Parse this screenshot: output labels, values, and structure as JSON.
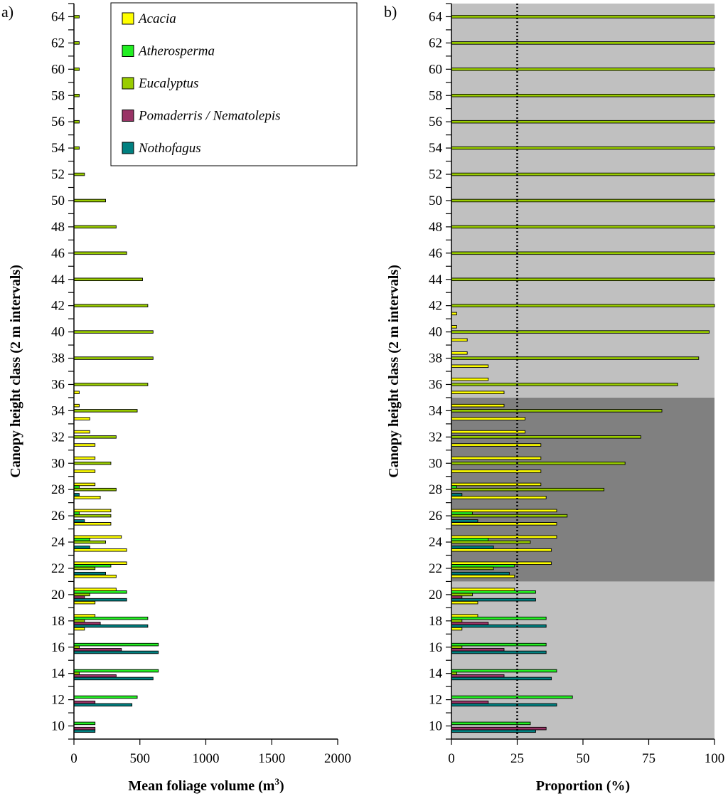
{
  "figure": {
    "panel_a_label": "a)",
    "panel_b_label": "b)"
  },
  "colors": {
    "Acacia": "#ffff00",
    "Atherosperma": "#22ee22",
    "Eucalyptus": "#99cc00",
    "Pomaderris / Nematolepis": "#993366",
    "Nothofagus": "#008080",
    "shade_light": "#c0c0c0",
    "shade_dark": "#808080"
  },
  "legend": {
    "items": [
      {
        "label": "Acacia",
        "color": "#ffff00"
      },
      {
        "label": "Atherosperma",
        "color": "#22ee22"
      },
      {
        "label": "Eucalyptus",
        "color": "#99cc00"
      },
      {
        "label": "Pomaderris / Nematolepis",
        "color": "#993366"
      },
      {
        "label": "Nothofagus",
        "color": "#008080"
      }
    ]
  },
  "chart_data": [
    {
      "type": "bar",
      "orientation": "horizontal",
      "panel": "a)",
      "xlabel_main": "Mean foliage volume (m",
      "xlabel_sup": "3",
      "xlabel_end": ")",
      "ylabel": "Canopy height class (2 m intervals)",
      "xlim": [
        0,
        2000
      ],
      "xticks": [
        "0",
        "500",
        "1000",
        "1500",
        "2000"
      ],
      "yticks": [
        "10",
        "12",
        "14",
        "16",
        "18",
        "20",
        "22",
        "24",
        "26",
        "28",
        "30",
        "32",
        "34",
        "36",
        "38",
        "40",
        "42",
        "44",
        "46",
        "48",
        "50",
        "52",
        "54",
        "56",
        "58",
        "60",
        "62",
        "64"
      ],
      "categories": [
        10,
        11,
        12,
        13,
        14,
        15,
        16,
        17,
        18,
        19,
        20,
        21,
        22,
        23,
        24,
        25,
        26,
        27,
        28,
        29,
        30,
        31,
        32,
        33,
        34,
        35,
        36,
        37,
        38,
        39,
        40,
        41,
        42,
        43,
        44,
        45,
        46,
        47,
        48,
        49,
        50,
        51,
        52,
        53,
        54,
        55,
        56,
        57,
        58,
        59,
        60,
        61,
        62,
        63,
        64
      ],
      "series": [
        {
          "name": "Acacia",
          "values": [
            0,
            0,
            0,
            0,
            0,
            0,
            0,
            80,
            160,
            160,
            320,
            320,
            400,
            400,
            360,
            280,
            280,
            200,
            160,
            160,
            160,
            160,
            120,
            120,
            40,
            40,
            0,
            0,
            0,
            0,
            0,
            0,
            0,
            0,
            0,
            0,
            0,
            0,
            0,
            0,
            0,
            0,
            0,
            0,
            0,
            0,
            0,
            0,
            0,
            0,
            0,
            0,
            0,
            0,
            0
          ]
        },
        {
          "name": "Atherosperma",
          "values": [
            160,
            0,
            480,
            0,
            640,
            0,
            640,
            0,
            560,
            0,
            400,
            0,
            280,
            0,
            120,
            0,
            40,
            0,
            40,
            0,
            0,
            0,
            0,
            0,
            0,
            0,
            0,
            0,
            0,
            0,
            0,
            0,
            0,
            0,
            0,
            0,
            0,
            0,
            0,
            0,
            0,
            0,
            0,
            0,
            0,
            0,
            0,
            0,
            0,
            0,
            0,
            0,
            0,
            0,
            0
          ]
        },
        {
          "name": "Eucalyptus",
          "values": [
            0,
            0,
            0,
            0,
            40,
            0,
            40,
            0,
            80,
            0,
            120,
            0,
            160,
            0,
            240,
            0,
            280,
            0,
            320,
            0,
            280,
            0,
            320,
            0,
            480,
            0,
            560,
            0,
            600,
            0,
            600,
            0,
            560,
            0,
            520,
            0,
            400,
            0,
            320,
            0,
            240,
            0,
            80,
            0,
            40,
            0,
            40,
            0,
            40,
            0,
            40,
            0,
            40,
            0,
            40
          ]
        },
        {
          "name": "Pomaderris / Nematolepis",
          "values": [
            160,
            0,
            160,
            0,
            320,
            0,
            360,
            0,
            200,
            0,
            80,
            0,
            0,
            0,
            0,
            0,
            0,
            0,
            0,
            0,
            0,
            0,
            0,
            0,
            0,
            0,
            0,
            0,
            0,
            0,
            0,
            0,
            0,
            0,
            0,
            0,
            0,
            0,
            0,
            0,
            0,
            0,
            0,
            0,
            0,
            0,
            0,
            0,
            0,
            0,
            0,
            0,
            0,
            0,
            0
          ]
        },
        {
          "name": "Nothofagus",
          "values": [
            160,
            0,
            440,
            0,
            600,
            0,
            640,
            0,
            560,
            0,
            400,
            0,
            240,
            0,
            120,
            0,
            80,
            0,
            40,
            0,
            0,
            0,
            0,
            0,
            0,
            0,
            0,
            0,
            0,
            0,
            0,
            0,
            0,
            0,
            0,
            0,
            0,
            0,
            0,
            0,
            0,
            0,
            0,
            0,
            0,
            0,
            0,
            0,
            0,
            0,
            0,
            0,
            0,
            0,
            0
          ]
        }
      ],
      "legend_position": "top-right"
    },
    {
      "type": "bar",
      "orientation": "horizontal",
      "panel": "b)",
      "xlabel": "Proportion (%)",
      "ylabel": "Canopy height class (2 m intervals)",
      "xlim": [
        0,
        100
      ],
      "xticks": [
        "0",
        "25",
        "50",
        "75",
        "100"
      ],
      "yticks": [
        "10",
        "12",
        "14",
        "16",
        "18",
        "20",
        "22",
        "24",
        "26",
        "28",
        "30",
        "32",
        "34",
        "36",
        "38",
        "40",
        "42",
        "44",
        "46",
        "48",
        "50",
        "52",
        "54",
        "56",
        "58",
        "60",
        "62",
        "64"
      ],
      "categories": [
        10,
        11,
        12,
        13,
        14,
        15,
        16,
        17,
        18,
        19,
        20,
        21,
        22,
        23,
        24,
        25,
        26,
        27,
        28,
        29,
        30,
        31,
        32,
        33,
        34,
        35,
        36,
        37,
        38,
        39,
        40,
        41,
        42,
        43,
        44,
        45,
        46,
        47,
        48,
        49,
        50,
        51,
        52,
        53,
        54,
        55,
        56,
        57,
        58,
        59,
        60,
        61,
        62,
        63,
        64
      ],
      "series": [
        {
          "name": "Acacia",
          "values": [
            0,
            0,
            0,
            0,
            0,
            0,
            0,
            4,
            10,
            10,
            24,
            24,
            38,
            38,
            40,
            40,
            40,
            36,
            34,
            34,
            34,
            34,
            28,
            28,
            20,
            20,
            14,
            14,
            6,
            6,
            2,
            2,
            0,
            0,
            0,
            0,
            0,
            0,
            0,
            0,
            0,
            0,
            0,
            0,
            0,
            0,
            0,
            0,
            0,
            0,
            0,
            0,
            0,
            0,
            0
          ]
        },
        {
          "name": "Atherosperma",
          "values": [
            30,
            0,
            46,
            0,
            40,
            0,
            36,
            0,
            36,
            0,
            32,
            0,
            24,
            0,
            14,
            0,
            8,
            0,
            2,
            0,
            0,
            0,
            0,
            0,
            0,
            0,
            0,
            0,
            0,
            0,
            0,
            0,
            0,
            0,
            0,
            0,
            0,
            0,
            0,
            0,
            0,
            0,
            0,
            0,
            0,
            0,
            0,
            0,
            0,
            0,
            0,
            0,
            0,
            0,
            0
          ]
        },
        {
          "name": "Eucalyptus",
          "values": [
            0,
            0,
            0,
            0,
            2,
            0,
            4,
            0,
            4,
            0,
            8,
            0,
            16,
            0,
            30,
            0,
            44,
            0,
            58,
            0,
            66,
            0,
            72,
            0,
            80,
            0,
            86,
            0,
            94,
            0,
            98,
            0,
            100,
            0,
            100,
            0,
            100,
            0,
            100,
            0,
            100,
            0,
            100,
            0,
            100,
            0,
            100,
            0,
            100,
            0,
            100,
            0,
            100,
            0,
            100
          ]
        },
        {
          "name": "Pomaderris / Nematolepis",
          "values": [
            36,
            0,
            14,
            0,
            20,
            0,
            20,
            0,
            14,
            0,
            4,
            0,
            0,
            0,
            0,
            0,
            0,
            0,
            0,
            0,
            0,
            0,
            0,
            0,
            0,
            0,
            0,
            0,
            0,
            0,
            0,
            0,
            0,
            0,
            0,
            0,
            0,
            0,
            0,
            0,
            0,
            0,
            0,
            0,
            0,
            0,
            0,
            0,
            0,
            0,
            0,
            0,
            0,
            0,
            0
          ]
        },
        {
          "name": "Nothofagus",
          "values": [
            32,
            0,
            40,
            0,
            38,
            0,
            36,
            0,
            36,
            0,
            32,
            0,
            22,
            0,
            16,
            0,
            10,
            0,
            4,
            0,
            0,
            0,
            0,
            0,
            0,
            0,
            0,
            0,
            0,
            0,
            0,
            0,
            0,
            0,
            0,
            0,
            0,
            0,
            0,
            0,
            0,
            0,
            0,
            0,
            0,
            0,
            0,
            0,
            0,
            0,
            0,
            0,
            0,
            0,
            0
          ]
        }
      ],
      "reference_line_x": 25,
      "shaded_bands": [
        {
          "from": 9,
          "to": 21,
          "shade": "light"
        },
        {
          "from": 21,
          "to": 35,
          "shade": "dark"
        },
        {
          "from": 35,
          "to": 65,
          "shade": "light"
        }
      ]
    }
  ]
}
